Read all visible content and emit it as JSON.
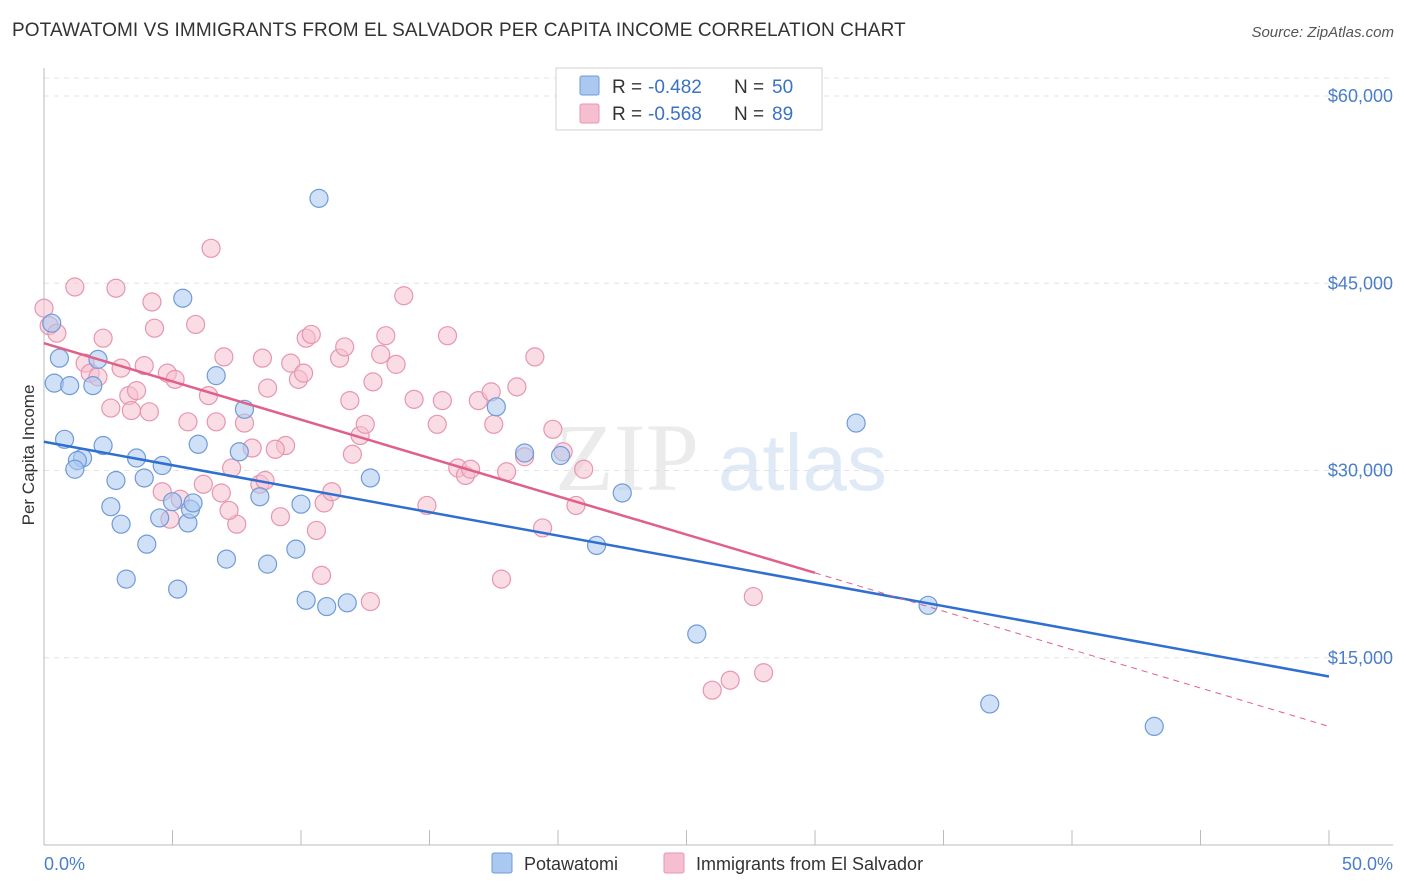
{
  "header": {
    "title": "POTAWATOMI VS IMMIGRANTS FROM EL SALVADOR PER CAPITA INCOME CORRELATION CHART",
    "source": "Source: ZipAtlas.com"
  },
  "watermark": {
    "zip": "ZIP",
    "atlas": "atlas"
  },
  "legend_top": {
    "rows": [
      {
        "r_label": "R =",
        "r_value": "-0.482",
        "n_label": "N =",
        "n_value": "50"
      },
      {
        "r_label": "R =",
        "r_value": "-0.568",
        "n_label": "N =",
        "n_value": "89"
      }
    ]
  },
  "legend_bottom": {
    "items": [
      {
        "label": "Potawatomi"
      },
      {
        "label": "Immigrants from El Salvador"
      }
    ]
  },
  "colors": {
    "blue_fill": "#aac8f0",
    "blue_stroke": "#6f9bd8",
    "blue_line": "#2f6fcf",
    "pink_fill": "#f5bfd0",
    "pink_stroke": "#e796b0",
    "pink_line": "#e0608a",
    "grid": "#e3e3e3",
    "tick_text": "#4a7ec8"
  },
  "chart_data": {
    "type": "scatter",
    "title": "POTAWATOMI VS IMMIGRANTS FROM EL SALVADOR PER CAPITA INCOME CORRELATION CHART",
    "xlabel": "",
    "ylabel": "Per Capita Income",
    "xlim": [
      0,
      50
    ],
    "ylim": [
      0,
      62500
    ],
    "x_tick_labels": [
      "0.0%",
      "50.0%"
    ],
    "y_ticks": [
      15000,
      30000,
      45000,
      60000
    ],
    "y_tick_labels": [
      "$15,000",
      "$30,000",
      "$45,000",
      "$60,000"
    ],
    "grid": true,
    "legend_position": "top-center",
    "series": [
      {
        "name": "Potawatomi",
        "r": -0.482,
        "n": 50,
        "trend": {
          "x0": 0,
          "y0": 32300,
          "x1": 50,
          "y1": 13500
        },
        "points": [
          [
            0.3,
            41800
          ],
          [
            0.6,
            39000
          ],
          [
            0.4,
            37000
          ],
          [
            1.0,
            36800
          ],
          [
            1.9,
            36800
          ],
          [
            2.1,
            38900
          ],
          [
            0.8,
            32500
          ],
          [
            1.5,
            31000
          ],
          [
            1.3,
            30800
          ],
          [
            1.2,
            30100
          ],
          [
            2.3,
            32000
          ],
          [
            2.8,
            29200
          ],
          [
            3.6,
            31000
          ],
          [
            3.9,
            29400
          ],
          [
            4.6,
            30400
          ],
          [
            5.0,
            27500
          ],
          [
            5.6,
            25800
          ],
          [
            5.7,
            26900
          ],
          [
            5.8,
            27400
          ],
          [
            5.4,
            43800
          ],
          [
            6.7,
            37600
          ],
          [
            6.0,
            32100
          ],
          [
            7.6,
            31500
          ],
          [
            7.8,
            34900
          ],
          [
            8.4,
            27900
          ],
          [
            9.8,
            23700
          ],
          [
            10.0,
            27300
          ],
          [
            10.7,
            51800
          ],
          [
            2.6,
            27100
          ],
          [
            3.0,
            25700
          ],
          [
            4.0,
            24100
          ],
          [
            4.5,
            26200
          ],
          [
            8.7,
            22500
          ],
          [
            7.1,
            22900
          ],
          [
            10.2,
            19600
          ],
          [
            11.0,
            19100
          ],
          [
            11.8,
            19400
          ],
          [
            12.7,
            29400
          ],
          [
            17.6,
            35100
          ],
          [
            18.7,
            31400
          ],
          [
            20.1,
            31200
          ],
          [
            21.5,
            24000
          ],
          [
            22.5,
            28200
          ],
          [
            25.4,
            16900
          ],
          [
            31.6,
            33800
          ],
          [
            34.4,
            19200
          ],
          [
            36.8,
            11300
          ],
          [
            43.2,
            9500
          ],
          [
            3.2,
            21300
          ],
          [
            5.2,
            20500
          ]
        ]
      },
      {
        "name": "Immigrants from El Salvador",
        "r": -0.568,
        "n": 89,
        "trend": {
          "x0": 0,
          "y0": 40200,
          "x1": 30,
          "y1": 21800
        },
        "trend_dashed": {
          "x0": 30,
          "y0": 21800,
          "x1": 50,
          "y1": 9500
        },
        "points": [
          [
            0.0,
            43000
          ],
          [
            0.2,
            41600
          ],
          [
            0.5,
            41000
          ],
          [
            1.2,
            44700
          ],
          [
            2.8,
            44600
          ],
          [
            4.2,
            43500
          ],
          [
            1.6,
            38600
          ],
          [
            1.8,
            37800
          ],
          [
            2.1,
            37500
          ],
          [
            2.3,
            40600
          ],
          [
            2.6,
            35000
          ],
          [
            3.0,
            38200
          ],
          [
            3.3,
            36000
          ],
          [
            3.4,
            34800
          ],
          [
            3.6,
            36400
          ],
          [
            3.9,
            38400
          ],
          [
            4.1,
            34700
          ],
          [
            4.3,
            41400
          ],
          [
            4.6,
            28300
          ],
          [
            4.8,
            37800
          ],
          [
            5.1,
            37300
          ],
          [
            5.3,
            27700
          ],
          [
            5.6,
            33900
          ],
          [
            5.9,
            41700
          ],
          [
            6.2,
            28900
          ],
          [
            6.4,
            36000
          ],
          [
            6.5,
            47800
          ],
          [
            6.7,
            33900
          ],
          [
            6.9,
            28200
          ],
          [
            7.0,
            39100
          ],
          [
            7.3,
            30200
          ],
          [
            7.5,
            25700
          ],
          [
            7.8,
            33800
          ],
          [
            8.1,
            31800
          ],
          [
            8.4,
            28900
          ],
          [
            8.5,
            39000
          ],
          [
            8.7,
            36600
          ],
          [
            9.2,
            26300
          ],
          [
            9.4,
            32000
          ],
          [
            9.6,
            38600
          ],
          [
            9.9,
            37300
          ],
          [
            10.2,
            40600
          ],
          [
            10.4,
            40900
          ],
          [
            10.6,
            25200
          ],
          [
            10.9,
            27400
          ],
          [
            11.2,
            28300
          ],
          [
            11.5,
            39000
          ],
          [
            11.7,
            39900
          ],
          [
            11.9,
            35600
          ],
          [
            12.3,
            32800
          ],
          [
            12.5,
            33700
          ],
          [
            12.8,
            37100
          ],
          [
            13.1,
            39300
          ],
          [
            13.3,
            40800
          ],
          [
            13.7,
            38500
          ],
          [
            14.0,
            44000
          ],
          [
            14.4,
            35700
          ],
          [
            14.9,
            27200
          ],
          [
            15.3,
            33700
          ],
          [
            15.5,
            35600
          ],
          [
            15.7,
            40800
          ],
          [
            16.1,
            30200
          ],
          [
            16.4,
            29600
          ],
          [
            16.6,
            30100
          ],
          [
            16.9,
            35600
          ],
          [
            17.4,
            36300
          ],
          [
            17.5,
            33700
          ],
          [
            18.0,
            29900
          ],
          [
            18.4,
            36700
          ],
          [
            18.7,
            31100
          ],
          [
            19.1,
            39100
          ],
          [
            19.4,
            25400
          ],
          [
            19.8,
            33300
          ],
          [
            20.2,
            31500
          ],
          [
            20.7,
            27200
          ],
          [
            21.0,
            30100
          ],
          [
            17.8,
            21300
          ],
          [
            26.0,
            12400
          ],
          [
            26.7,
            13200
          ],
          [
            27.6,
            19900
          ],
          [
            28.0,
            13800
          ],
          [
            8.6,
            29200
          ],
          [
            10.1,
            37800
          ],
          [
            12.0,
            31300
          ],
          [
            9.0,
            31700
          ],
          [
            7.2,
            26800
          ],
          [
            10.8,
            21600
          ],
          [
            12.7,
            19500
          ],
          [
            4.9,
            26100
          ]
        ]
      }
    ]
  }
}
